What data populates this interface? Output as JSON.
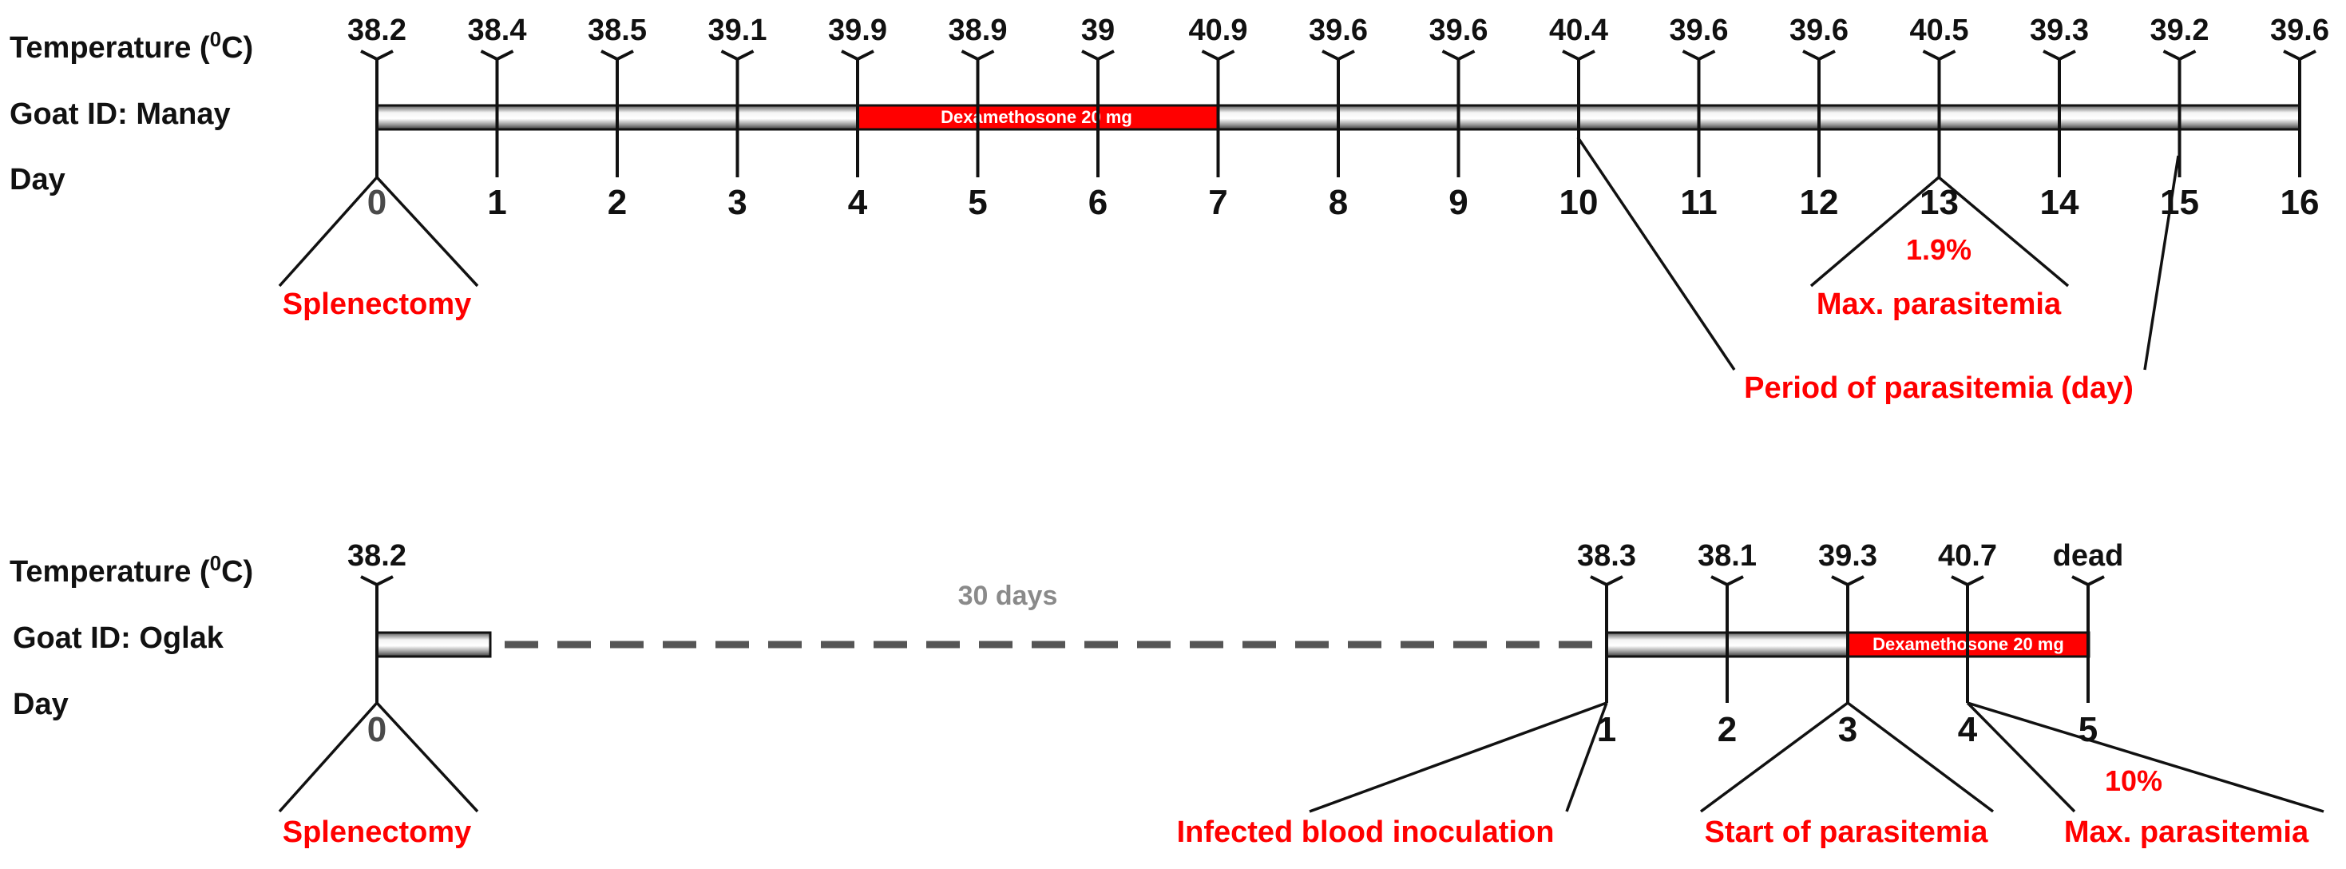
{
  "colors": {
    "accent_red": "#ff0000",
    "gap_grey": "#8a8a8a",
    "line": "#111111"
  },
  "timelines": [
    {
      "labels": {
        "temperature": "Temperature (",
        "temperature_sup": "0",
        "temperature_end": "C)",
        "goat": "Goat  ID: Manay",
        "day": "Day"
      },
      "days": [
        "0",
        "1",
        "2",
        "3",
        "4",
        "5",
        "6",
        "7",
        "8",
        "9",
        "10",
        "11",
        "12",
        "13",
        "14",
        "15",
        "16"
      ],
      "temperatures": [
        "38.2",
        "38.4",
        "38.5",
        "39.1",
        "39.9",
        "38.9",
        "39",
        "40.9",
        "39.6",
        "39.6",
        "40.4",
        "39.6",
        "39.6",
        "40.5",
        "39.3",
        "39.2",
        "39.6"
      ],
      "treatment": {
        "label": "Dexamethosone 20 mg",
        "from_day": 4,
        "to_day": 7
      },
      "events": [
        {
          "label": "Splenectomy",
          "day": "0"
        },
        {
          "label": "Max. parasitemia",
          "day": "13",
          "value": "1.9%"
        },
        {
          "label": "Period of parasitemia (day)",
          "days": [
            "10",
            "15"
          ]
        }
      ]
    },
    {
      "labels": {
        "temperature": "Temperature (",
        "temperature_sup": "0",
        "temperature_end": "C)",
        "goat": "Goat  ID: Oglak",
        "day": "Day"
      },
      "days": [
        "0",
        "1",
        "2",
        "3",
        "4",
        "5"
      ],
      "temperatures": [
        "38.2",
        "38.3",
        "38.1",
        "39.3",
        "40.7",
        "dead"
      ],
      "gap_label": "30 days",
      "treatment": {
        "label": "Dexamethosone 20 mg",
        "from_day": 3,
        "to_day": 5
      },
      "events": [
        {
          "label": "Splenectomy",
          "day": "0"
        },
        {
          "label": "Infected blood inoculation",
          "day": "1"
        },
        {
          "label": "Start of parasitemia",
          "day": "3"
        },
        {
          "label": "Max. parasitemia",
          "day": "4",
          "value": "10%"
        }
      ]
    }
  ]
}
